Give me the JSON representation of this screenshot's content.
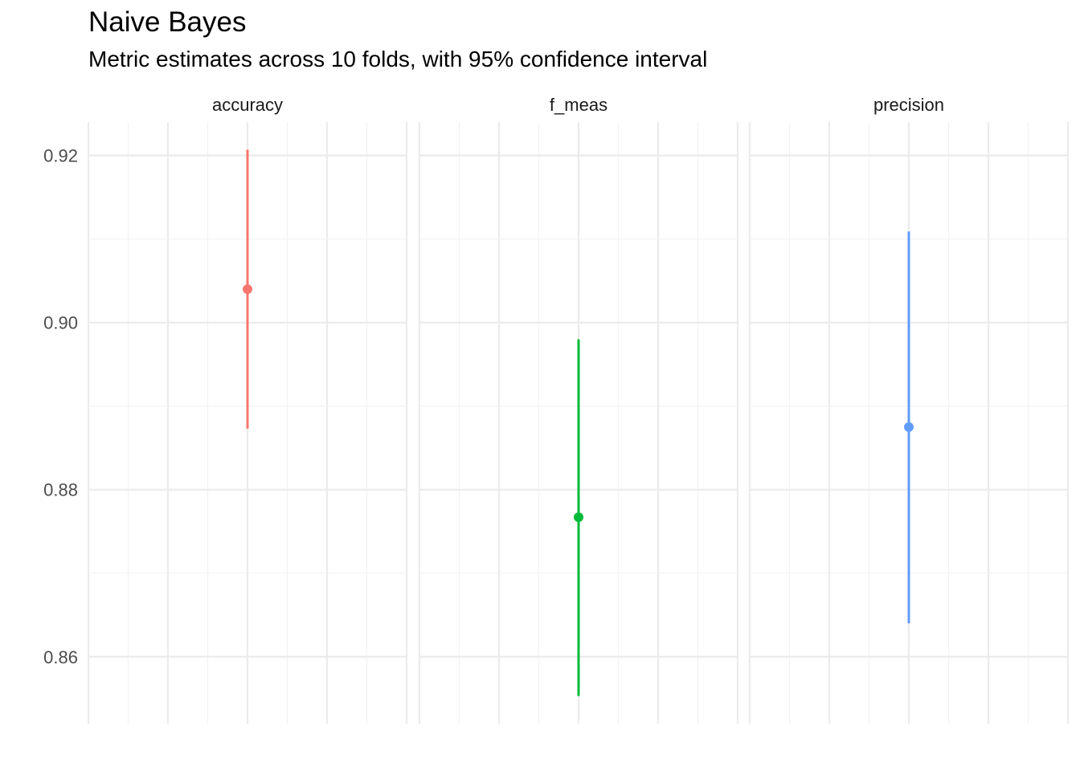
{
  "chart_data": {
    "type": "pointrange",
    "title": "Naive Bayes",
    "subtitle": "Metric estimates across 10 folds, with 95% confidence interval",
    "xlabel": "",
    "ylabel": "",
    "ylim": [
      0.852,
      0.924
    ],
    "y_ticks": [
      "0.86",
      "0.88",
      "0.90",
      "0.92"
    ],
    "y_tick_values": [
      0.86,
      0.88,
      0.9,
      0.92
    ],
    "y_minor_values": [
      0.87,
      0.89,
      0.91
    ],
    "grid": true,
    "legend": "none",
    "facets": [
      {
        "name": "accuracy",
        "estimate": 0.904,
        "lower": 0.8873,
        "upper": 0.9207,
        "color": "#F8766D"
      },
      {
        "name": "f_meas",
        "estimate": 0.8767,
        "lower": 0.8553,
        "upper": 0.898,
        "color": "#00BA38"
      },
      {
        "name": "precision",
        "estimate": 0.8875,
        "lower": 0.864,
        "upper": 0.9109,
        "color": "#619CFF"
      }
    ]
  }
}
